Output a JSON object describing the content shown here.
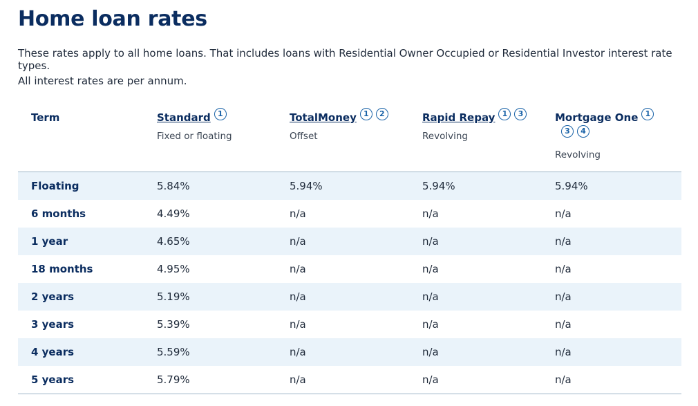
{
  "page": {
    "title": "Home loan rates",
    "intro": "These rates apply to all home loans. That includes loans with Residential Owner Occupied or Residential Investor interest rate types.",
    "note": "All interest rates are per annum."
  },
  "table": {
    "term_header": "Term",
    "products": [
      {
        "name": "Standard",
        "subtitle": "Fixed or floating",
        "footnotes": [
          "1"
        ]
      },
      {
        "name": "TotalMoney",
        "subtitle": "Offset",
        "footnotes": [
          "1",
          "2"
        ]
      },
      {
        "name": "Rapid Repay",
        "subtitle": "Revolving",
        "footnotes": [
          "1",
          "3"
        ]
      },
      {
        "name": "Mortgage One",
        "subtitle": "Revolving",
        "footnotes": [
          "1",
          "3",
          "4"
        ]
      }
    ],
    "rows": [
      {
        "term": "Floating",
        "standard": "5.84%",
        "totalmoney": "5.94%",
        "rapid_repay": "5.94%",
        "mortgage_one": "5.94%"
      },
      {
        "term": "6 months",
        "standard": "4.49%",
        "totalmoney": "n/a",
        "rapid_repay": "n/a",
        "mortgage_one": "n/a"
      },
      {
        "term": "1 year",
        "standard": "4.65%",
        "totalmoney": "n/a",
        "rapid_repay": "n/a",
        "mortgage_one": "n/a"
      },
      {
        "term": "18 months",
        "standard": "4.95%",
        "totalmoney": "n/a",
        "rapid_repay": "n/a",
        "mortgage_one": "n/a"
      },
      {
        "term": "2 years",
        "standard": "5.19%",
        "totalmoney": "n/a",
        "rapid_repay": "n/a",
        "mortgage_one": "n/a"
      },
      {
        "term": "3 years",
        "standard": "5.39%",
        "totalmoney": "n/a",
        "rapid_repay": "n/a",
        "mortgage_one": "n/a"
      },
      {
        "term": "4 years",
        "standard": "5.59%",
        "totalmoney": "n/a",
        "rapid_repay": "n/a",
        "mortgage_one": "n/a"
      },
      {
        "term": "5 years",
        "standard": "5.79%",
        "totalmoney": "n/a",
        "rapid_repay": "n/a",
        "mortgage_one": "n/a"
      }
    ]
  },
  "colors": {
    "heading": "#0b2d60",
    "footnote_accent": "#1a63a8",
    "row_stripe": "#eaf3fa",
    "divider": "#9cb4c6"
  }
}
